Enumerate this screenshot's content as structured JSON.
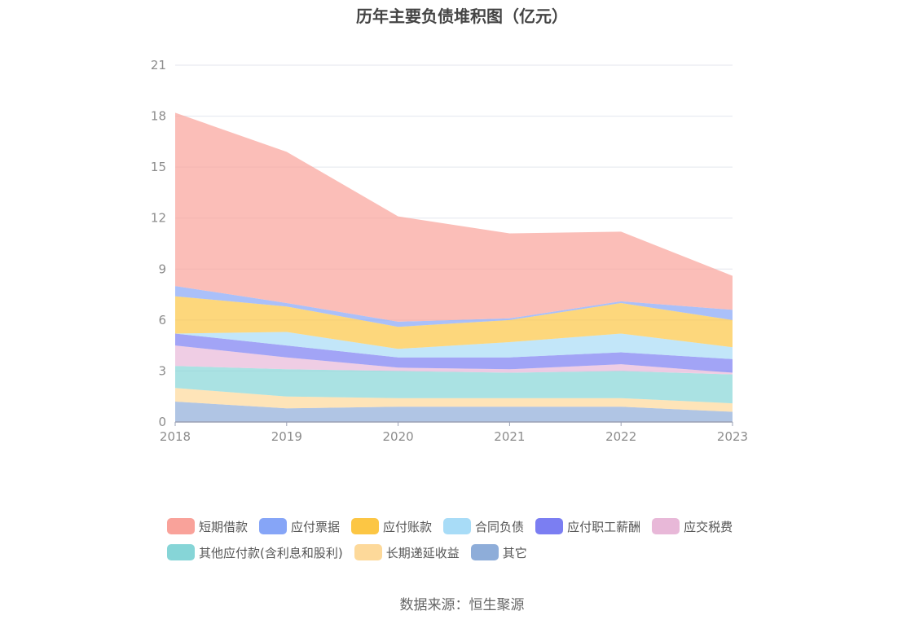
{
  "chart_data": {
    "type": "area",
    "title": "历年主要负债堆积图（亿元）",
    "stacked": true,
    "categories": [
      "2018",
      "2019",
      "2020",
      "2021",
      "2022",
      "2023"
    ],
    "ylim": [
      0,
      21
    ],
    "yticks": [
      0,
      3,
      6,
      9,
      12,
      15,
      18,
      21
    ],
    "grid": true,
    "legend_position": "bottom",
    "series": [
      {
        "name": "其它",
        "color": "#8eadd9",
        "values": [
          1.2,
          0.8,
          0.9,
          0.9,
          0.9,
          0.6
        ]
      },
      {
        "name": "长期递延收益",
        "color": "#fdd99a",
        "values": [
          0.8,
          0.7,
          0.5,
          0.5,
          0.5,
          0.5
        ]
      },
      {
        "name": "其他应付款(含利息和股利)",
        "color": "#86d5d7",
        "values": [
          1.3,
          1.6,
          1.6,
          1.5,
          1.6,
          1.7
        ]
      },
      {
        "name": "应交税费",
        "color": "#e8b8d8",
        "values": [
          1.2,
          0.7,
          0.2,
          0.2,
          0.4,
          0.1
        ]
      },
      {
        "name": "应付职工薪酬",
        "color": "#7b7ef2",
        "values": [
          0.7,
          0.7,
          0.6,
          0.7,
          0.7,
          0.8
        ]
      },
      {
        "name": "合同负债",
        "color": "#a8dcf7",
        "values": [
          0,
          0.8,
          0.5,
          0.9,
          1.1,
          0.7
        ]
      },
      {
        "name": "应付账款",
        "color": "#fcc644",
        "values": [
          2.2,
          1.5,
          1.3,
          1.3,
          1.8,
          1.6
        ]
      },
      {
        "name": "应付票据",
        "color": "#86a5f7",
        "values": [
          0.6,
          0.2,
          0.3,
          0.1,
          0.1,
          0.6
        ]
      },
      {
        "name": "短期借款",
        "color": "#f9a29a",
        "values": [
          10.2,
          8.9,
          6.2,
          5.0,
          4.1,
          2.0
        ]
      }
    ]
  },
  "legend": {
    "row1": [
      {
        "label": "短期借款",
        "color": "#f9a29a"
      },
      {
        "label": "应付票据",
        "color": "#86a5f7"
      },
      {
        "label": "应付账款",
        "color": "#fcc644"
      },
      {
        "label": "合同负债",
        "color": "#a8dcf7"
      },
      {
        "label": "应付职工薪酬",
        "color": "#7b7ef2"
      },
      {
        "label": "应交税费",
        "color": "#e8b8d8"
      }
    ],
    "row2": [
      {
        "label": "其他应付款(含利息和股利)",
        "color": "#86d5d7"
      },
      {
        "label": "长期递延收益",
        "color": "#fdd99a"
      },
      {
        "label": "其它",
        "color": "#8eadd9"
      }
    ]
  },
  "source": "数据来源：恒生聚源"
}
